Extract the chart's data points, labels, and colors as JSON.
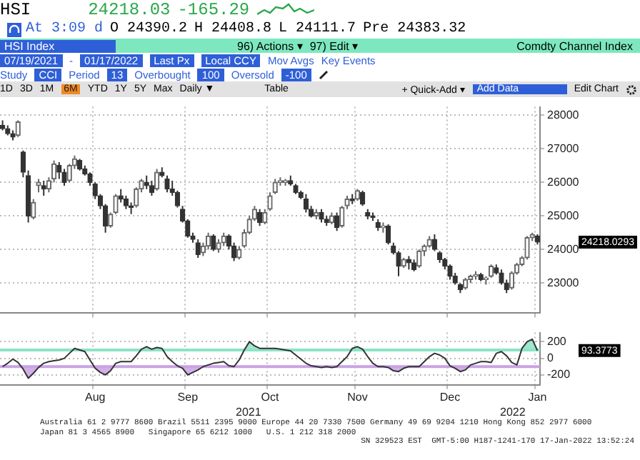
{
  "chart_data": [
    {
      "type": "candlestick",
      "ohlc": [
        [
          27700,
          27850,
          27550,
          27600
        ],
        [
          27600,
          27700,
          27400,
          27450
        ],
        [
          27450,
          27550,
          27250,
          27350
        ],
        [
          27400,
          27850,
          27350,
          27800
        ],
        [
          26900,
          26950,
          26150,
          26300
        ],
        [
          26200,
          26350,
          24800,
          25000
        ],
        [
          24950,
          25500,
          24900,
          25400
        ],
        [
          25900,
          26100,
          25700,
          26000
        ],
        [
          25900,
          26050,
          25600,
          25800
        ],
        [
          25800,
          26150,
          25700,
          26050
        ],
        [
          26100,
          26650,
          26000,
          26550
        ],
        [
          26500,
          26600,
          26100,
          26300
        ],
        [
          26300,
          26400,
          25900,
          26000
        ],
        [
          26050,
          26550,
          26000,
          26500
        ],
        [
          26500,
          26800,
          26400,
          26700
        ],
        [
          26650,
          26700,
          26350,
          26400
        ],
        [
          26400,
          26500,
          26200,
          26250
        ],
        [
          26250,
          26300,
          25900,
          26000
        ],
        [
          25950,
          26000,
          25500,
          25600
        ],
        [
          25600,
          25650,
          25200,
          25300
        ],
        [
          25300,
          25350,
          24500,
          24700
        ],
        [
          24700,
          25100,
          24650,
          25050
        ],
        [
          25100,
          25650,
          25050,
          25600
        ],
        [
          25600,
          25800,
          25400,
          25500
        ],
        [
          25500,
          25600,
          25200,
          25300
        ],
        [
          25300,
          25400,
          25050,
          25250
        ],
        [
          25300,
          25850,
          25250,
          25800
        ],
        [
          25800,
          26100,
          25700,
          26050
        ],
        [
          26000,
          26200,
          25800,
          25900
        ],
        [
          25900,
          26050,
          25600,
          25700
        ],
        [
          25800,
          26400,
          25750,
          26300
        ],
        [
          26300,
          26450,
          26150,
          26200
        ],
        [
          26100,
          26200,
          25700,
          25800
        ],
        [
          25800,
          26050,
          25600,
          25700
        ],
        [
          25700,
          25750,
          25250,
          25300
        ],
        [
          25200,
          25300,
          24800,
          24850
        ],
        [
          24850,
          24900,
          24350,
          24400
        ],
        [
          24400,
          24500,
          24200,
          24300
        ],
        [
          24200,
          24300,
          23750,
          23850
        ],
        [
          23900,
          24200,
          23800,
          24100
        ],
        [
          24100,
          24500,
          24000,
          24400
        ],
        [
          24400,
          24450,
          23950,
          24000
        ],
        [
          24000,
          24300,
          23900,
          24200
        ],
        [
          24200,
          24500,
          24100,
          24400
        ],
        [
          24400,
          24450,
          24000,
          24100
        ],
        [
          24100,
          24200,
          23650,
          23750
        ],
        [
          23750,
          24100,
          23700,
          24000
        ],
        [
          24100,
          24600,
          24050,
          24500
        ],
        [
          24500,
          25000,
          24450,
          24900
        ],
        [
          24900,
          25300,
          24850,
          25200
        ],
        [
          25100,
          25200,
          24700,
          24800
        ],
        [
          24800,
          25200,
          24750,
          25100
        ],
        [
          25200,
          25700,
          25150,
          25600
        ],
        [
          25700,
          26100,
          25650,
          26000
        ],
        [
          26000,
          26150,
          25900,
          26050
        ],
        [
          26000,
          26100,
          25900,
          26050
        ],
        [
          26050,
          26200,
          25900,
          25950
        ],
        [
          25900,
          25950,
          25650,
          25700
        ],
        [
          25700,
          25750,
          25500,
          25550
        ],
        [
          25500,
          25650,
          25100,
          25200
        ],
        [
          25200,
          25300,
          24950,
          25000
        ],
        [
          25000,
          25200,
          24900,
          25100
        ],
        [
          25100,
          25200,
          24800,
          24900
        ],
        [
          24900,
          25000,
          24700,
          24800
        ],
        [
          24800,
          25100,
          24750,
          25000
        ],
        [
          25000,
          25100,
          24550,
          24650
        ],
        [
          24700,
          25300,
          24650,
          25250
        ],
        [
          25300,
          25600,
          25200,
          25500
        ],
        [
          25500,
          25650,
          25350,
          25450
        ],
        [
          25500,
          25800,
          25450,
          25750
        ],
        [
          25700,
          25750,
          25300,
          25350
        ],
        [
          25100,
          25200,
          24900,
          25000
        ],
        [
          25000,
          25100,
          24850,
          24950
        ],
        [
          24800,
          24900,
          24550,
          24650
        ],
        [
          24650,
          24800,
          24500,
          24700
        ],
        [
          24700,
          24750,
          24150,
          24200
        ],
        [
          24100,
          24200,
          23850,
          23900
        ],
        [
          23900,
          23950,
          23200,
          23500
        ],
        [
          23500,
          23750,
          23450,
          23700
        ],
        [
          23700,
          23800,
          23400,
          23600
        ],
        [
          23600,
          23700,
          23350,
          23400
        ],
        [
          23500,
          24000,
          23450,
          23950
        ],
        [
          23950,
          24150,
          23800,
          24100
        ],
        [
          24100,
          24400,
          24050,
          24300
        ],
        [
          24300,
          24450,
          23950,
          24000
        ],
        [
          23900,
          23950,
          23600,
          23700
        ],
        [
          23700,
          23750,
          23400,
          23500
        ],
        [
          23500,
          23550,
          23100,
          23200
        ],
        [
          23200,
          23300,
          22950,
          23000
        ],
        [
          22950,
          23000,
          22700,
          22800
        ],
        [
          22850,
          23150,
          22800,
          23100
        ],
        [
          23100,
          23250,
          23000,
          23200
        ],
        [
          23200,
          23350,
          23100,
          23250
        ],
        [
          23250,
          23300,
          23050,
          23100
        ],
        [
          23100,
          23200,
          22950,
          23150
        ],
        [
          23200,
          23550,
          23150,
          23500
        ],
        [
          23450,
          23550,
          23250,
          23300
        ],
        [
          23300,
          23400,
          22950,
          23000
        ],
        [
          23000,
          23100,
          22700,
          22800
        ],
        [
          22850,
          23350,
          22800,
          23300
        ],
        [
          23300,
          23600,
          23250,
          23550
        ],
        [
          23550,
          23800,
          23500,
          23750
        ],
        [
          23750,
          24400,
          23700,
          24350
        ],
        [
          24350,
          24500,
          24250,
          24450
        ],
        [
          24400,
          24450,
          24150,
          24218
        ]
      ],
      "colors": [
        "#333333",
        "#333333",
        "#333333",
        "#666666",
        "#333333",
        "#333333",
        "#666666",
        "#666666",
        "#333333",
        "#666666",
        "#666666",
        "#333333",
        "#333333",
        "#666666",
        "#666666",
        "#333333",
        "#333333",
        "#333333",
        "#333333",
        "#333333",
        "#333333",
        "#666666",
        "#666666",
        "#333333",
        "#333333",
        "#333333",
        "#666666",
        "#666666",
        "#333333",
        "#333333",
        "#666666",
        "#333333",
        "#333333",
        "#333333",
        "#333333",
        "#333333",
        "#333333",
        "#333333",
        "#333333",
        "#666666",
        "#666666",
        "#333333",
        "#666666",
        "#666666",
        "#333333",
        "#333333",
        "#666666",
        "#666666",
        "#666666",
        "#666666",
        "#333333",
        "#666666",
        "#666666",
        "#666666",
        "#666666",
        "#666666",
        "#333333",
        "#333333",
        "#333333",
        "#333333",
        "#333333",
        "#666666",
        "#333333",
        "#333333",
        "#666666",
        "#333333",
        "#666666",
        "#666666",
        "#333333",
        "#666666",
        "#333333",
        "#333333",
        "#333333",
        "#333333",
        "#666666",
        "#333333",
        "#333333",
        "#333333",
        "#666666",
        "#333333",
        "#333333",
        "#666666",
        "#666666",
        "#666666",
        "#333333",
        "#333333",
        "#333333",
        "#333333",
        "#333333",
        "#333333",
        "#666666",
        "#666666",
        "#666666",
        "#333333",
        "#666666",
        "#666666",
        "#333333",
        "#333333",
        "#333333",
        "#666666",
        "#666666",
        "#666666",
        "#666666",
        "#666666",
        "#333333"
      ],
      "ylim": [
        22100,
        28250
      ],
      "yticks": [
        23000,
        24000,
        25000,
        26000,
        27000,
        28000
      ],
      "grid": true,
      "tick_labels": "y",
      "annotations": [
        "HSI",
        "24218.03",
        "-165.29",
        "At 3:09 d",
        "O 24390.2",
        "H 24408.8",
        "L 24111.7",
        "Pre 24383.32",
        "HSI Index",
        "96) Actions ▾",
        "97) Edit ▾",
        "Comdty Channel Index",
        "07/19/2021",
        "-",
        "01/17/2022",
        "Last Px",
        "Local CCY",
        "Mov Avgs",
        "Key Events",
        "Study",
        "CCI",
        "Period",
        "13",
        "Overbought",
        "100",
        "Oversold",
        "-100",
        "1D",
        "3D",
        "1M",
        "6M",
        "YTD",
        "1Y",
        "5Y",
        "Max",
        "Daily ▼",
        "Table",
        "+ Quick-Add ▾",
        "Add Data",
        "Edit Chart",
        "24218.0293"
      ]
    },
    {
      "type": "line",
      "categories": [
        null,
        null,
        null,
        null,
        null,
        null,
        null,
        null,
        null,
        null,
        null,
        null,
        null,
        null,
        null,
        null,
        null,
        null,
        "Aug",
        null,
        null,
        null,
        null,
        null,
        null,
        null,
        null,
        null,
        null,
        null,
        null,
        null,
        null,
        null,
        null,
        null,
        "Sep",
        null,
        null,
        null,
        null,
        null,
        null,
        null,
        null,
        null,
        null,
        null,
        null,
        null,
        null,
        null,
        "Oct",
        null,
        null,
        null,
        null,
        null,
        null,
        null,
        null,
        null,
        null,
        null,
        null,
        null,
        null,
        null,
        null,
        "Nov",
        null,
        null,
        null,
        null,
        null,
        null,
        null,
        null,
        null,
        null,
        null,
        null,
        null,
        null,
        null,
        null,
        null,
        "Dec",
        null,
        null,
        null,
        null,
        null,
        null,
        null,
        null,
        null,
        null,
        null,
        null,
        null,
        null,
        null,
        null,
        "Jan"
      ],
      "series": [
        {
          "color": "#333333",
          "values": [
            -100,
            -60,
            -10,
            -50,
            -130,
            -240,
            -180,
            -110,
            -60,
            -40,
            -30,
            -20,
            0,
            60,
            120,
            100,
            80,
            -20,
            -120,
            -170,
            -200,
            -150,
            -60,
            -40,
            -40,
            -40,
            30,
            110,
            140,
            110,
            130,
            120,
            20,
            -40,
            -90,
            -120,
            -200,
            -170,
            -140,
            -100,
            -80,
            -60,
            -50,
            -40,
            -90,
            -100,
            -20,
            100,
            200,
            150,
            120,
            120,
            120,
            120,
            110,
            100,
            90,
            40,
            -10,
            -60,
            -90,
            -100,
            -110,
            -100,
            -110,
            -100,
            -40,
            20,
            120,
            140,
            110,
            20,
            -60,
            -100,
            -100,
            -110,
            -150,
            -160,
            -120,
            -100,
            -100,
            -100,
            -40,
            20,
            60,
            40,
            0,
            -90,
            -120,
            -160,
            -140,
            -80,
            -60,
            -40,
            -40,
            -50,
            60,
            80,
            30,
            -50,
            -80,
            120,
            200,
            230,
            93.3773
          ]
        }
      ],
      "marker": "none",
      "ylim": [
        -320,
        310
      ],
      "yticks": [
        -200,
        0,
        200
      ],
      "grid": true,
      "ref_lines": [
        {
          "axis": "y",
          "value": 100,
          "color": "#8de3c5"
        },
        {
          "axis": "y",
          "value": -100,
          "color": "#c9a2e6"
        }
      ],
      "annotations": [
        "Australia 61 2 9777 8600 Brazil 5511 2395 9000 Europe 44 20 7330 7500 Germany 49 69 9204 1210 Hong Kong 852 2977 6000",
        "Japan 81 3 4565 8900   Singapore 65 6212 1000   U.S. 1 212 318 2000",
        "SN 329523 EST  GMT-5:00 H187-1241-170 17-Jan-2022 13:52:24",
        "2021",
        "2022",
        "93.3773"
      ]
    }
  ]
}
